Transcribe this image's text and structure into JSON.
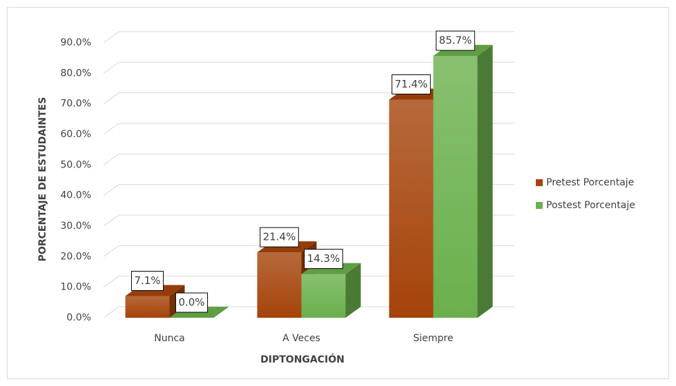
{
  "chart_data": {
    "type": "bar3d",
    "x_label": "DIPTONGACIÓN",
    "y_label": "PORCENTAJE DE ESTUDAINTES",
    "categories": [
      "Nunca",
      "A Veces",
      "Siempre"
    ],
    "series": [
      {
        "name": "Pretest Porcentaje",
        "color": "#a5430a",
        "values": [
          7.1,
          21.4,
          71.4
        ],
        "value_labels": [
          "7.1%",
          "21.4%",
          "71.4%"
        ]
      },
      {
        "name": "Postest Porcentaje",
        "color": "#6ab04c",
        "values": [
          0.0,
          14.3,
          85.7
        ],
        "value_labels": [
          "0.0%",
          "14.3%",
          "85.7%"
        ]
      }
    ],
    "ylim": [
      0,
      90
    ],
    "yticks": [
      {
        "value": 0,
        "label": "0.0%"
      },
      {
        "value": 10,
        "label": "10.0%"
      },
      {
        "value": 20,
        "label": "20.0%"
      },
      {
        "value": 30,
        "label": "30.0%"
      },
      {
        "value": 40,
        "label": "40.0%"
      },
      {
        "value": 50,
        "label": "50.0%"
      },
      {
        "value": 60,
        "label": "60.0%"
      },
      {
        "value": 70,
        "label": "70.0%"
      },
      {
        "value": 80,
        "label": "80.0%"
      },
      {
        "value": 90,
        "label": "90.0%"
      }
    ],
    "grid": true,
    "legend": "right"
  }
}
